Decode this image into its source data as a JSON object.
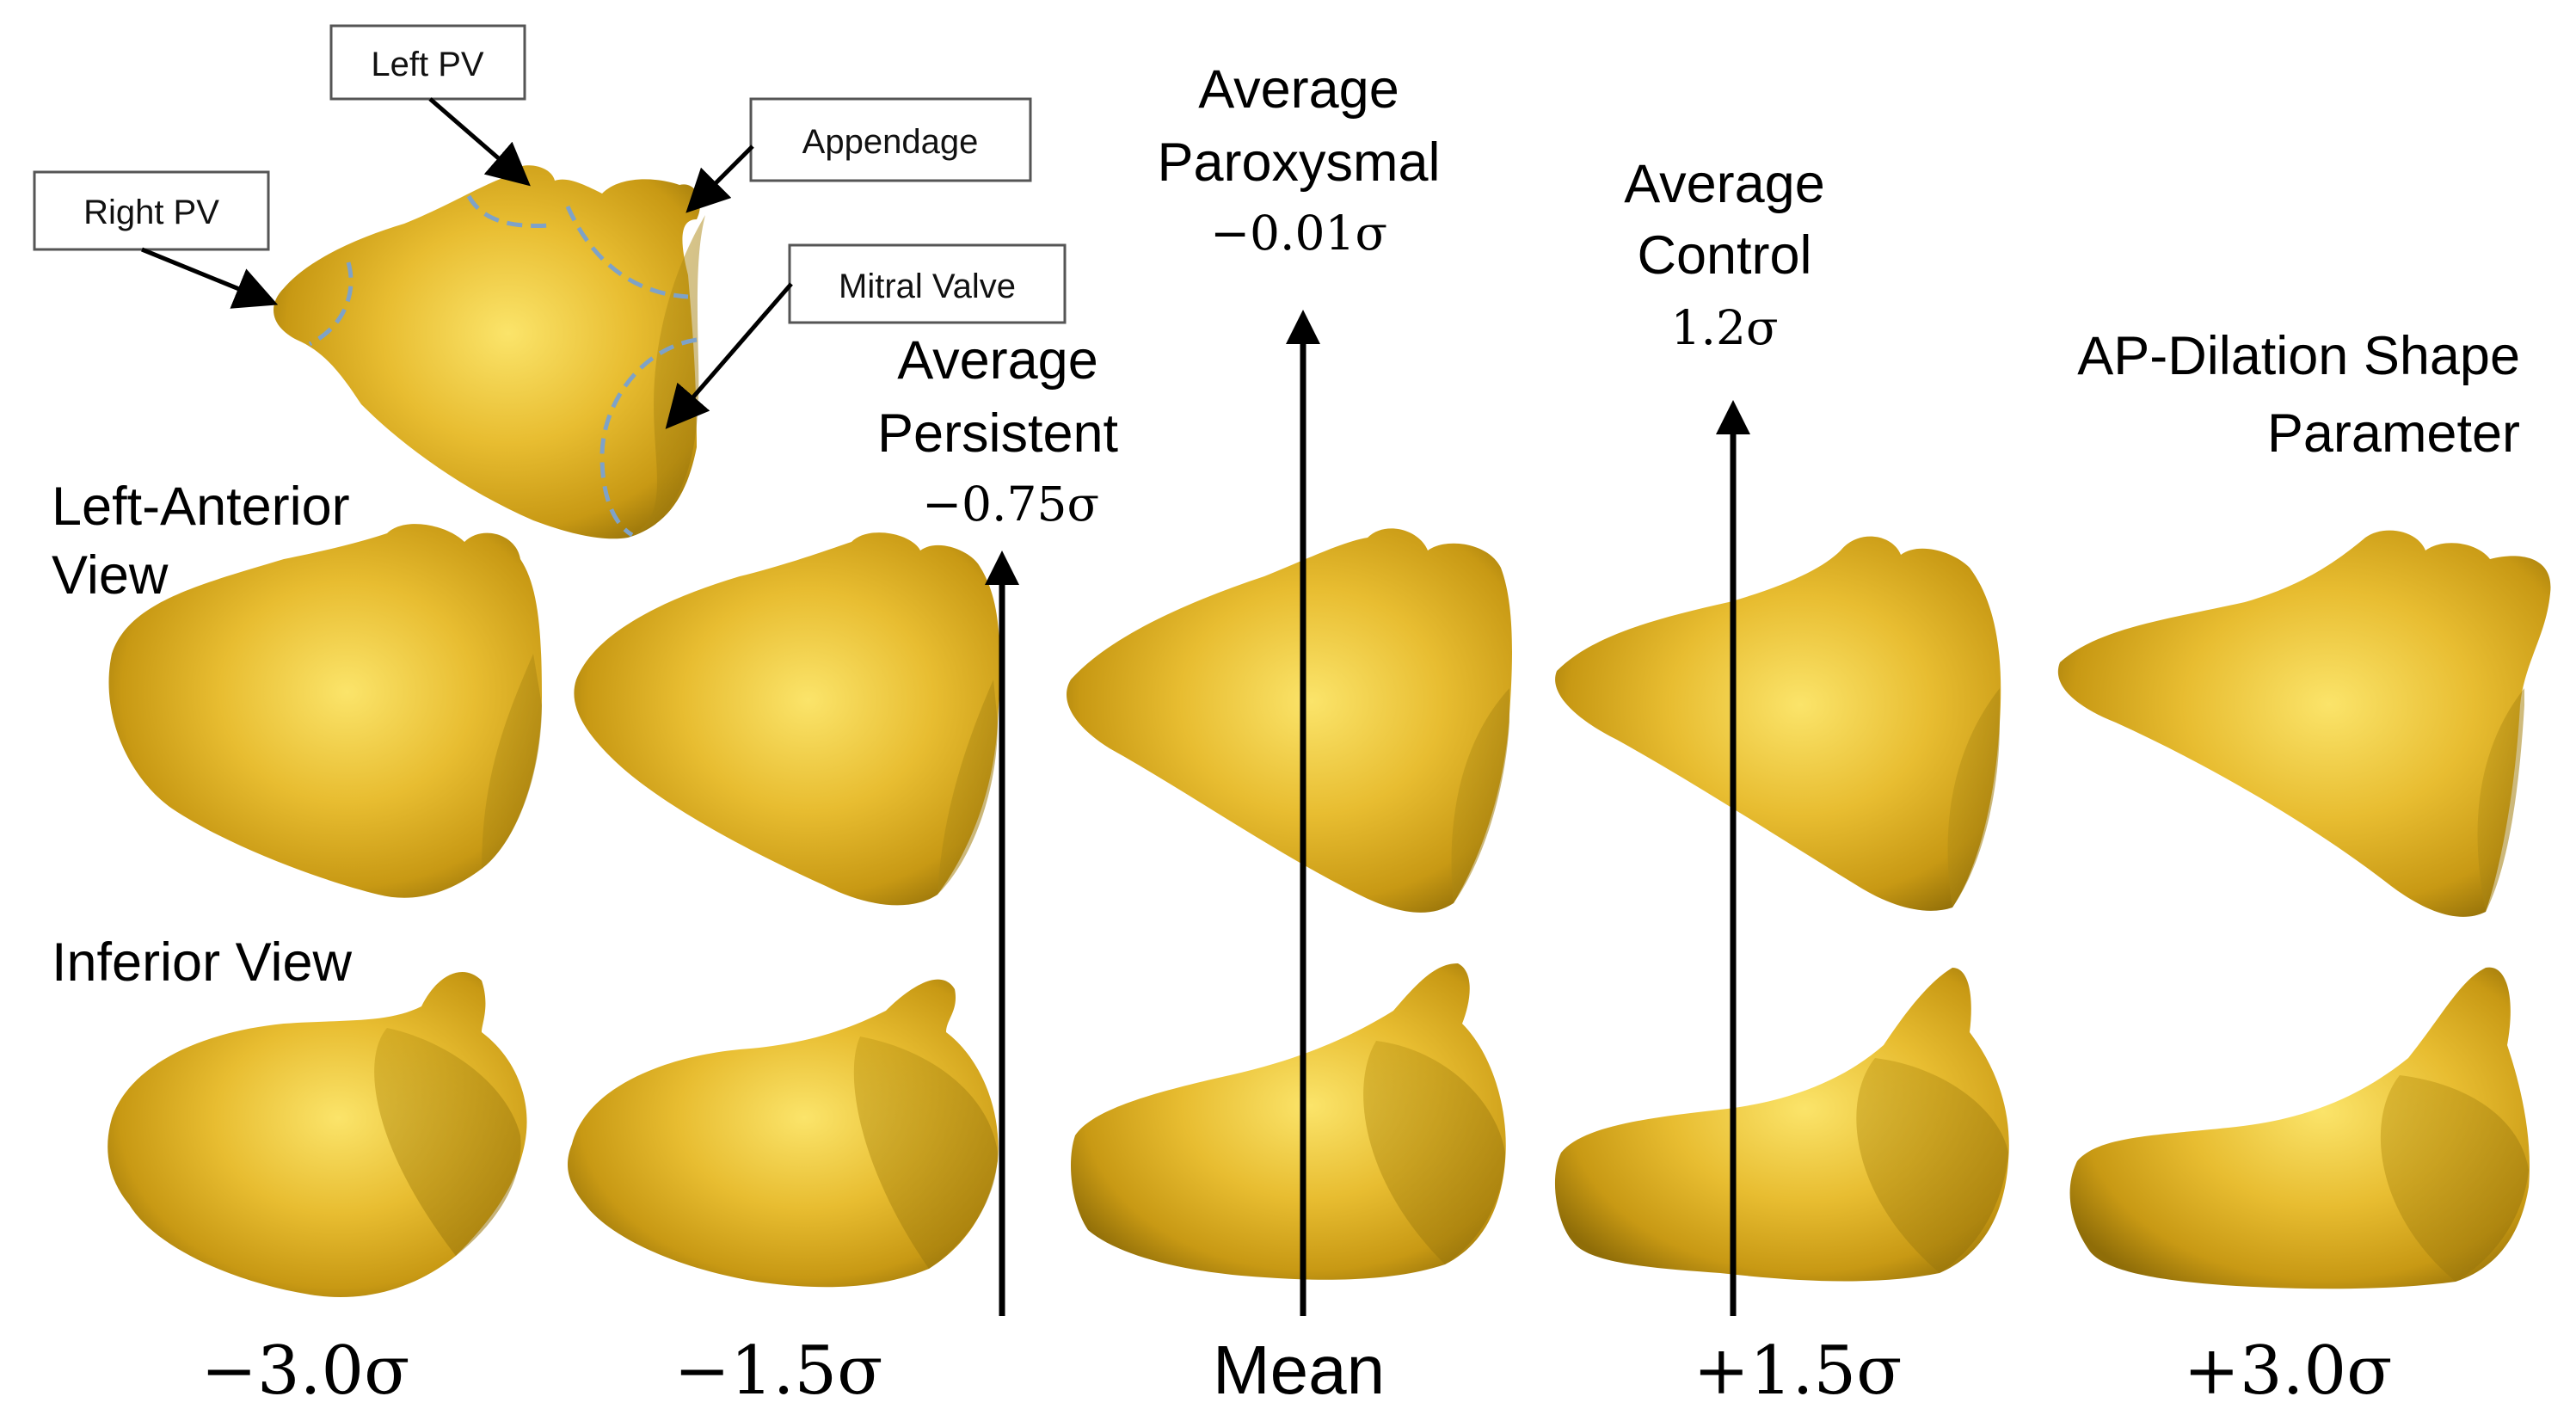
{
  "callouts": {
    "left_pv": "Left PV",
    "appendage": "Appendage",
    "right_pv": "Right PV",
    "mitral_valve": "Mitral Valve"
  },
  "title": {
    "line1": "AP-Dilation Shape",
    "line2": "Parameter"
  },
  "row_labels": {
    "left_anterior_line1": "Left-Anterior",
    "left_anterior_line2": "View",
    "inferior": "Inferior View"
  },
  "markers": {
    "persistent": {
      "line1": "Average",
      "line2": "Persistent",
      "value": "−0.75σ"
    },
    "paroxysmal": {
      "line1": "Average",
      "line2": "Paroxysmal",
      "value": "−0.01σ"
    },
    "control": {
      "line1": "Average",
      "line2": "Control",
      "value": "1.2σ"
    }
  },
  "axis_labels": [
    "−3.0σ",
    "−1.5σ",
    "Mean",
    "+1.5σ",
    "+3.0σ"
  ],
  "colors": {
    "shape_light": "#f4d24a",
    "shape_mid": "#d9aa22",
    "shape_dark": "#8a6a08",
    "outline_dash": "#7ea2c8"
  }
}
